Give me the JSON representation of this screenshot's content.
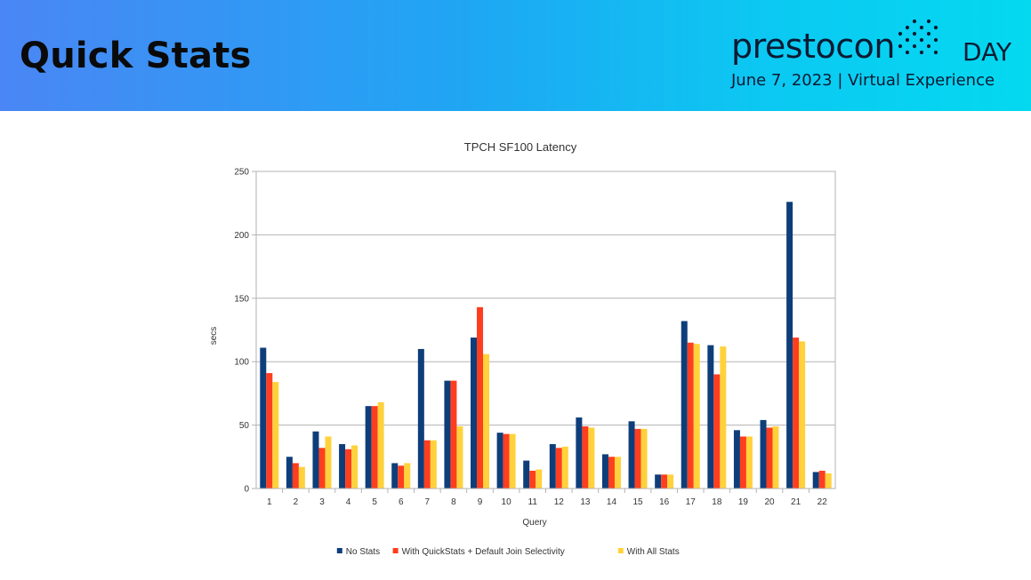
{
  "slide": {
    "title": "Quick Stats",
    "brand_name": "prestocon",
    "brand_day": "DAY",
    "event_line": "June 7, 2023 | Virtual Experience"
  },
  "colors": {
    "banner_start": "#4a86f5",
    "banner_end": "#04d9f0"
  },
  "chart_data": {
    "type": "bar",
    "title": "TPCH SF100 Latency",
    "xlabel": "Query",
    "ylabel": "secs",
    "ylim": [
      0,
      250
    ],
    "yticks": [
      0,
      50,
      100,
      150,
      200,
      250
    ],
    "grid": true,
    "legend_position": "bottom",
    "categories": [
      "1",
      "2",
      "3",
      "4",
      "5",
      "6",
      "7",
      "8",
      "9",
      "10",
      "11",
      "12",
      "13",
      "14",
      "15",
      "16",
      "17",
      "18",
      "19",
      "20",
      "21",
      "22"
    ],
    "series": [
      {
        "name": "No Stats",
        "color": "#0e3e7a",
        "values": [
          111,
          25,
          45,
          35,
          65,
          20,
          110,
          85,
          119,
          44,
          22,
          35,
          56,
          27,
          53,
          11,
          132,
          113,
          46,
          54,
          226,
          13
        ]
      },
      {
        "name": "With QuickStats + Default Join Selectivity",
        "color": "#ff3d1f",
        "values": [
          91,
          20,
          32,
          31,
          65,
          18,
          38,
          85,
          143,
          43,
          14,
          32,
          49,
          25,
          47,
          11,
          115,
          90,
          41,
          48,
          119,
          14
        ]
      },
      {
        "name": "With All Stats",
        "color": "#ffd23c",
        "values": [
          84,
          17,
          41,
          34,
          68,
          20,
          38,
          49,
          106,
          43,
          15,
          33,
          48,
          25,
          47,
          11,
          114,
          112,
          41,
          49,
          116,
          12
        ]
      }
    ]
  }
}
